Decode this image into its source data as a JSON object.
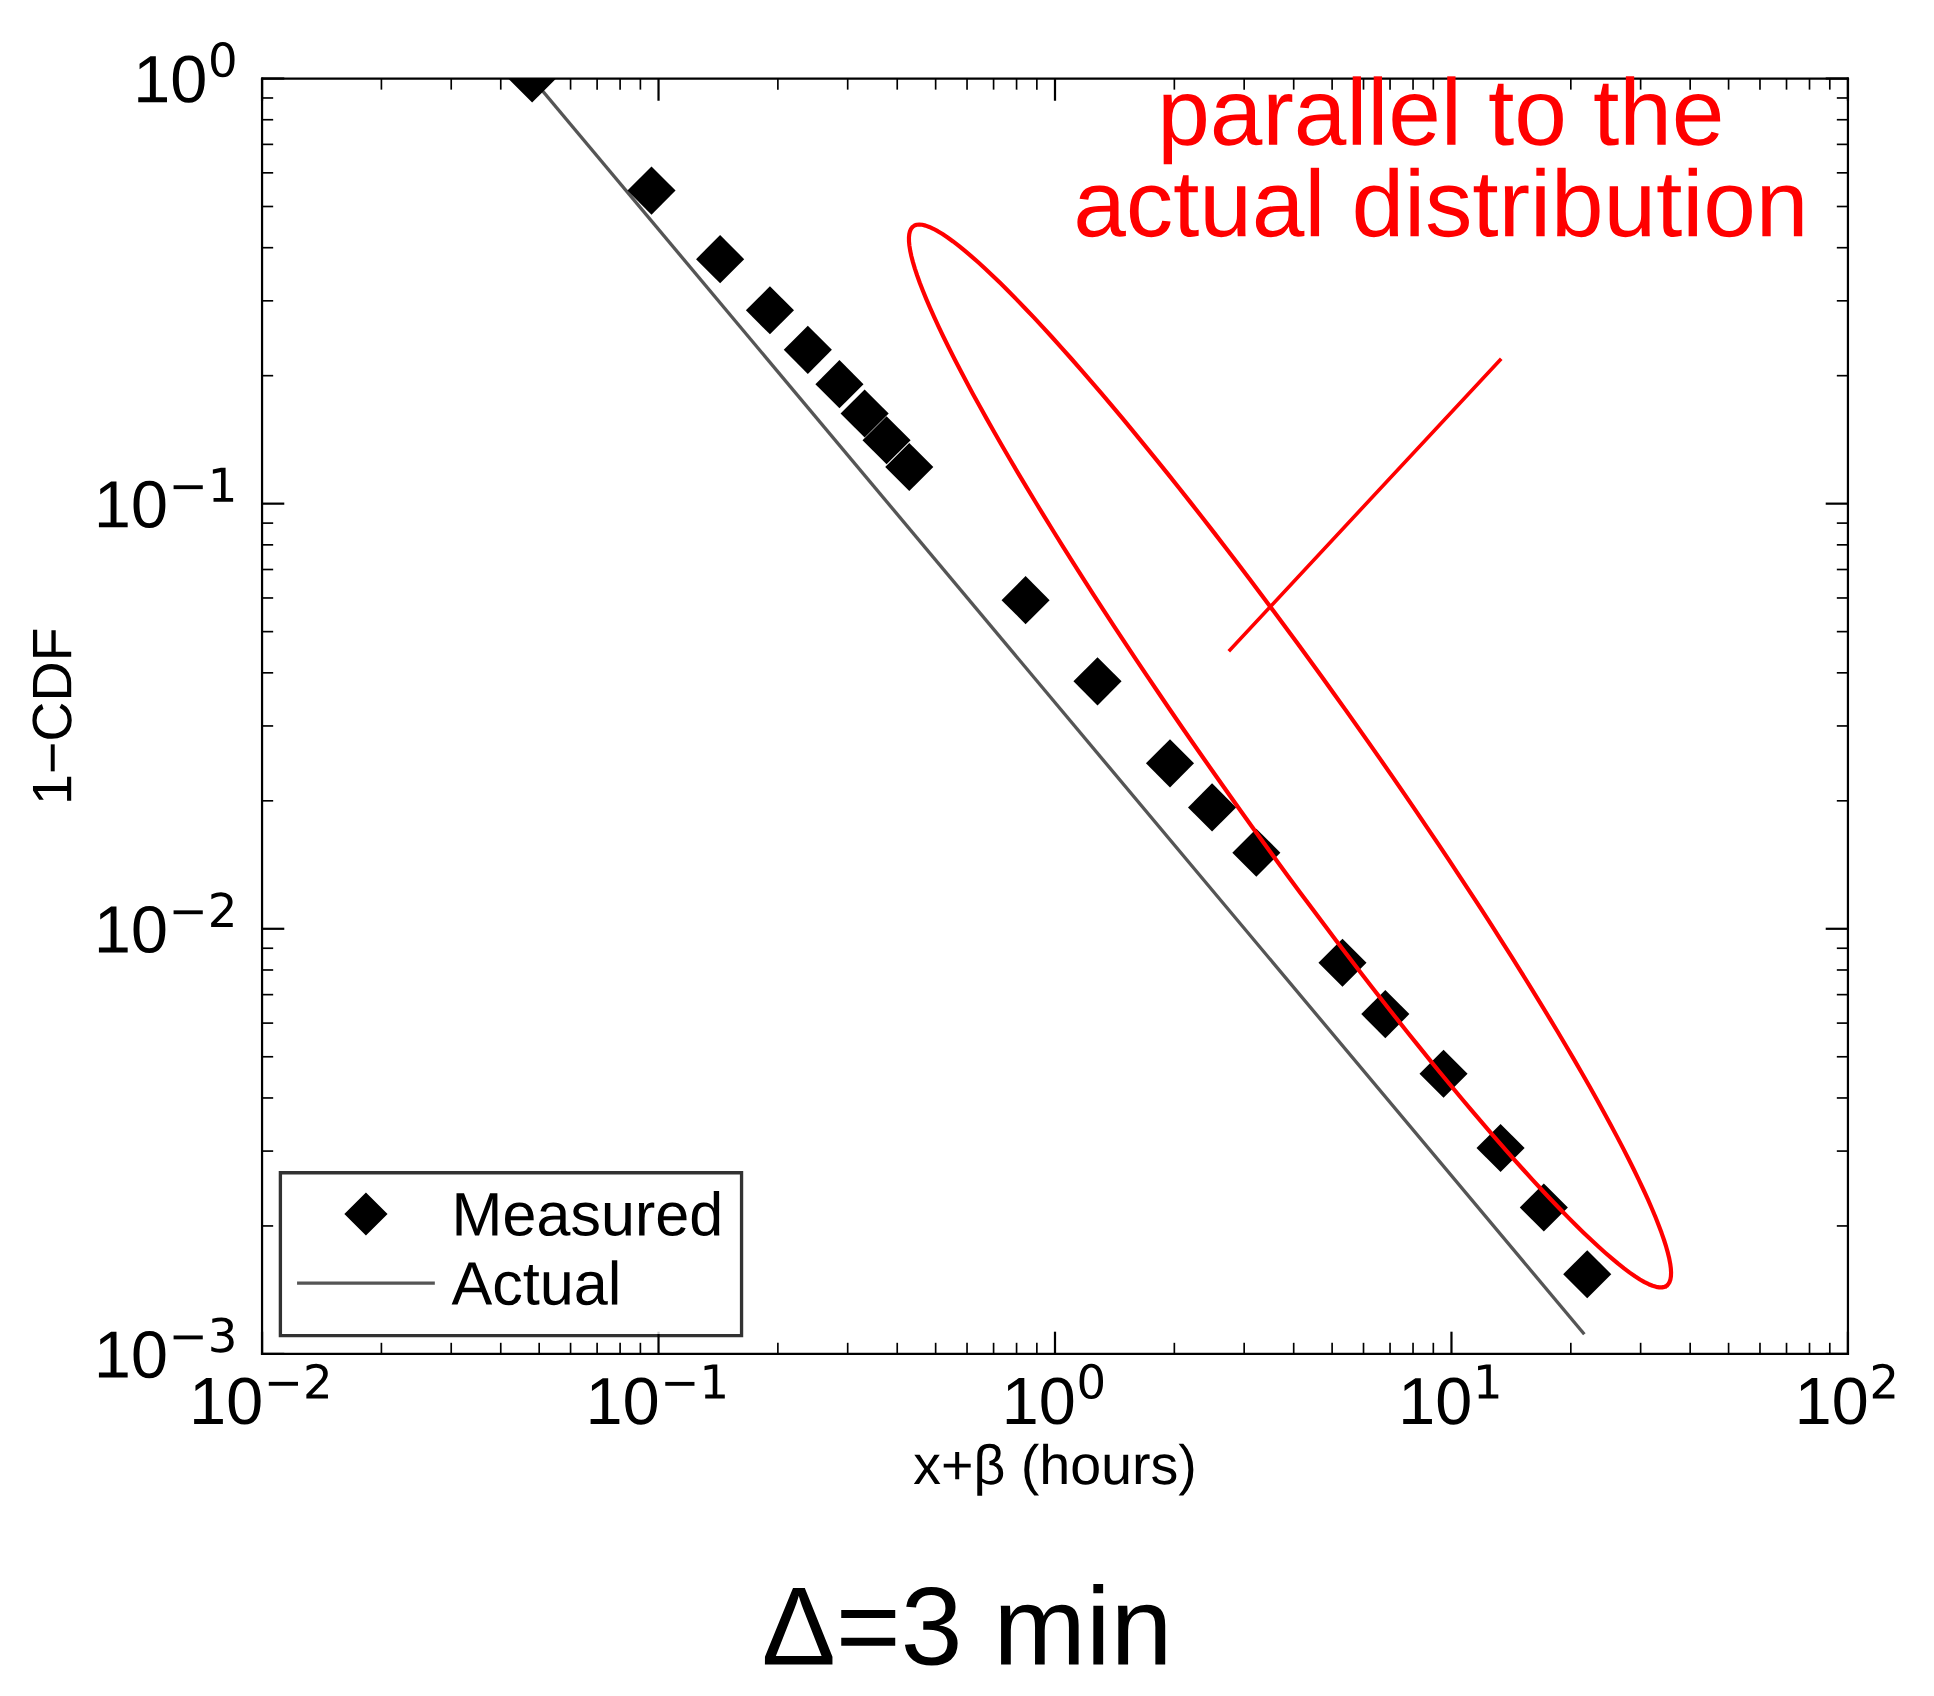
{
  "chart_data": {
    "type": "scatter",
    "xlabel": "x+β (hours)",
    "ylabel": "1−CDF",
    "log": "xy",
    "xlim": [
      0.01,
      100
    ],
    "ylim": [
      0.001,
      1
    ],
    "xticks": [
      {
        "value": 0.01,
        "label": "10$^{−2}$"
      },
      {
        "value": 0.1,
        "label": "10$^{−1}$"
      },
      {
        "value": 1,
        "label": "10$^{0}$"
      },
      {
        "value": 10,
        "label": "10$^{1}$"
      },
      {
        "value": 100,
        "label": "10$^{2}$"
      }
    ],
    "yticks": [
      {
        "value": 0.001,
        "label": "10$^{−3}$"
      },
      {
        "value": 0.01,
        "label": "10$^{−2}$"
      },
      {
        "value": 0.1,
        "label": "10$^{−1}$"
      },
      {
        "value": 1,
        "label": "10$^{0}$"
      }
    ],
    "legend": "bottom left",
    "grid": false,
    "series": [
      {
        "name": "Measured",
        "marker": "diamond",
        "color": "#000000",
        "x": [
          0.048,
          0.096,
          0.143,
          0.191,
          0.238,
          0.286,
          0.331,
          0.376,
          0.429,
          0.843,
          1.28,
          1.95,
          2.49,
          3.22,
          5.31,
          6.81,
          9.55,
          13.3,
          17.1,
          22.0
        ],
        "values": [
          1.0,
          0.545,
          0.376,
          0.285,
          0.23,
          0.191,
          0.163,
          0.141,
          0.122,
          0.0593,
          0.0382,
          0.0245,
          0.0193,
          0.0151,
          0.00832,
          0.0063,
          0.00456,
          0.00305,
          0.00221,
          0.00154
        ]
      },
      {
        "name": "Actual",
        "type": "line",
        "color": "#555555",
        "line_style": "solid",
        "marker": "none",
        "x": [
          0.048,
          21.5
        ],
        "values": [
          1.0,
          0.00112
        ]
      }
    ],
    "annotations": [
      "parallel to the\nactual distribution",
      "Δ=3 min"
    ]
  }
}
